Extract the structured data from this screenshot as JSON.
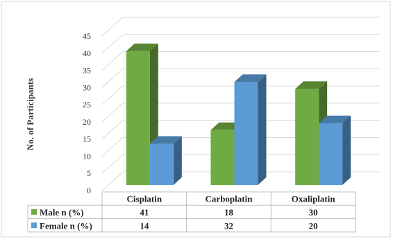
{
  "chart_data": {
    "type": "bar",
    "style": "3d-clustered-column-with-data-table",
    "categories": [
      "Cisplatin",
      "Carboplatin",
      "Oxaliplatin"
    ],
    "series": [
      {
        "name": "Male n (%)",
        "values": [
          41,
          18,
          30
        ],
        "color": "#6fab43"
      },
      {
        "name": "Female n (%)",
        "values": [
          14,
          32,
          20
        ],
        "color": "#5b9bd5"
      }
    ],
    "ylabel": "No. of Participants",
    "ylim": [
      0,
      45
    ],
    "yticks": [
      0,
      5,
      10,
      15,
      20,
      25,
      30,
      35,
      40,
      45
    ],
    "grid": true,
    "data_table": true
  }
}
